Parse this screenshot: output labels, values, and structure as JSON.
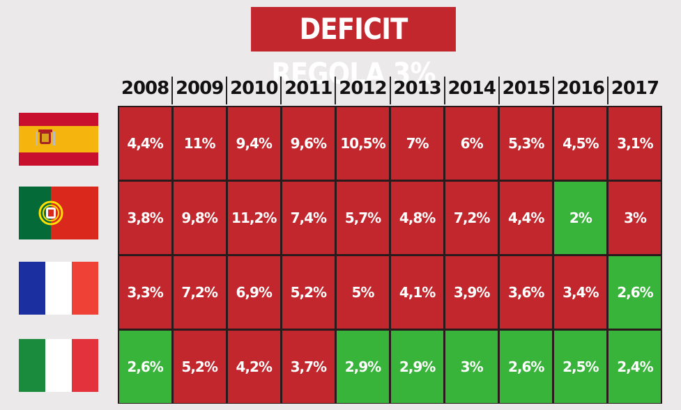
{
  "colors": {
    "above_limit": "#c1272d",
    "within_limit": "#38b43b",
    "title_bg": "#c1272d"
  },
  "chart_data": {
    "type": "table",
    "title": "DEFICIT REGOLA 3%",
    "columns": [
      "2008",
      "2009",
      "2010",
      "2011",
      "2012",
      "2013",
      "2014",
      "2015",
      "2016",
      "2017"
    ],
    "rows": [
      {
        "flag": "spain-flag",
        "labels": [
          "4,4%",
          "11%",
          "9,4%",
          "9,6%",
          "10,5%",
          "7%",
          "6%",
          "5,3%",
          "4,5%",
          "3,1%"
        ],
        "values": [
          4.4,
          11,
          9.4,
          9.6,
          10.5,
          7,
          6,
          5.3,
          4.5,
          3.1
        ],
        "status": [
          "above",
          "above",
          "above",
          "above",
          "above",
          "above",
          "above",
          "above",
          "above",
          "above"
        ]
      },
      {
        "flag": "portugal-flag",
        "labels": [
          "3,8%",
          "9,8%",
          "11,2%",
          "7,4%",
          "5,7%",
          "4,8%",
          "7,2%",
          "4,4%",
          "2%",
          "3%"
        ],
        "values": [
          3.8,
          9.8,
          11.2,
          7.4,
          5.7,
          4.8,
          7.2,
          4.4,
          2,
          3
        ],
        "status": [
          "above",
          "above",
          "above",
          "above",
          "above",
          "above",
          "above",
          "above",
          "within",
          "above"
        ]
      },
      {
        "flag": "france-flag",
        "labels": [
          "3,3%",
          "7,2%",
          "6,9%",
          "5,2%",
          "5%",
          "4,1%",
          "3,9%",
          "3,6%",
          "3,4%",
          "2,6%"
        ],
        "values": [
          3.3,
          7.2,
          6.9,
          5.2,
          5,
          4.1,
          3.9,
          3.6,
          3.4,
          2.6
        ],
        "status": [
          "above",
          "above",
          "above",
          "above",
          "above",
          "above",
          "above",
          "above",
          "above",
          "within"
        ]
      },
      {
        "flag": "italy-flag",
        "labels": [
          "2,6%",
          "5,2%",
          "4,2%",
          "3,7%",
          "2,9%",
          "2,9%",
          "3%",
          "2,6%",
          "2,5%",
          "2,4%"
        ],
        "values": [
          2.6,
          5.2,
          4.2,
          3.7,
          2.9,
          2.9,
          3,
          2.6,
          2.5,
          2.4
        ],
        "status": [
          "within",
          "above",
          "above",
          "above",
          "within",
          "within",
          "within",
          "within",
          "within",
          "within"
        ]
      }
    ]
  }
}
